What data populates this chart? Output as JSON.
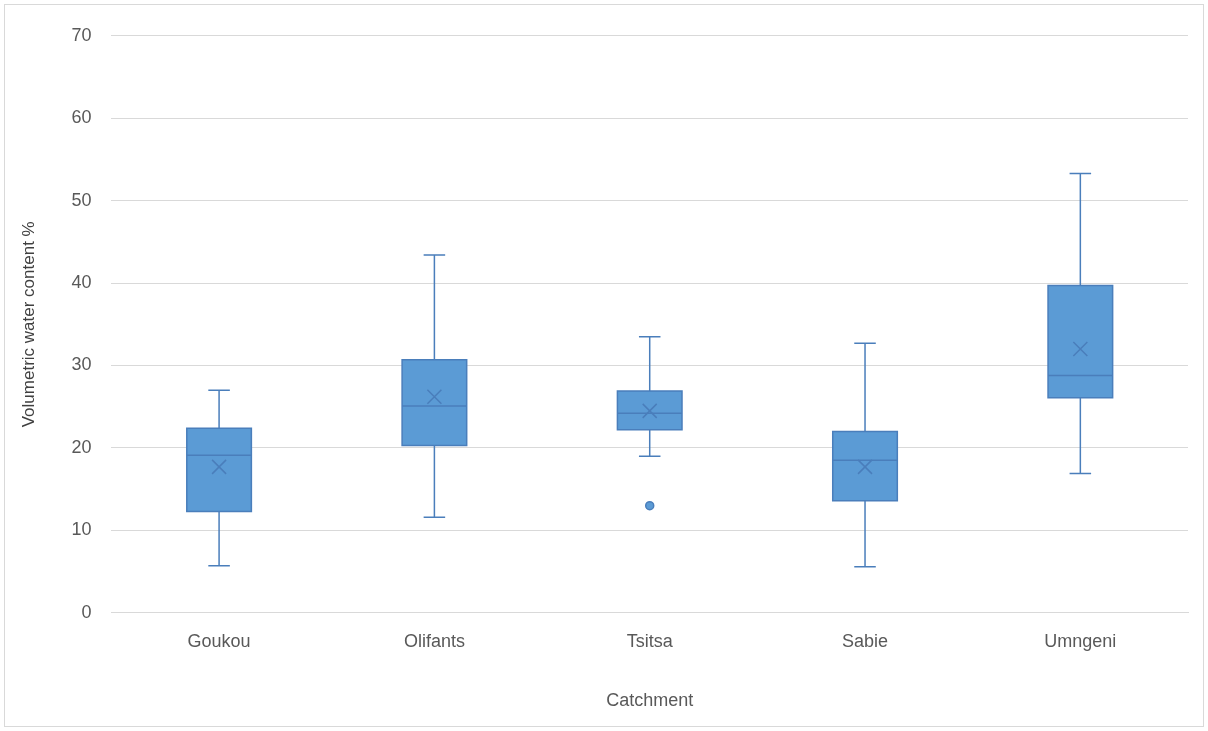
{
  "chart_data": {
    "type": "box",
    "xlabel": "Catchment",
    "ylabel": "Volumetric water content %",
    "categories": [
      "Goukou",
      "Olifants",
      "Tsitsa",
      "Sabie",
      "Umngeni"
    ],
    "color": "#5b9bd5",
    "boxes": [
      {
        "low": 5.7,
        "q1": 12.3,
        "median": 19.1,
        "q3": 22.4,
        "high": 27.0,
        "mean": 17.7
      },
      {
        "low": 11.6,
        "q1": 20.3,
        "median": 25.1,
        "q3": 30.7,
        "high": 43.4,
        "mean": 26.2
      },
      {
        "low": 19.0,
        "q1": 22.2,
        "median": 24.2,
        "q3": 26.9,
        "high": 33.5,
        "mean": 24.5,
        "outliers": [
          13.0
        ]
      },
      {
        "low": 5.6,
        "q1": 13.6,
        "median": 18.5,
        "q3": 22.0,
        "high": 32.7,
        "mean": 17.7
      },
      {
        "low": 16.9,
        "q1": 26.1,
        "median": 28.8,
        "q3": 39.7,
        "high": 53.3,
        "mean": 32.0
      }
    ],
    "ylim": [
      0,
      70
    ],
    "yticks": [
      0,
      10,
      20,
      30,
      40,
      50,
      60,
      70
    ],
    "grid": "y",
    "legend": false,
    "marker": "cross"
  }
}
